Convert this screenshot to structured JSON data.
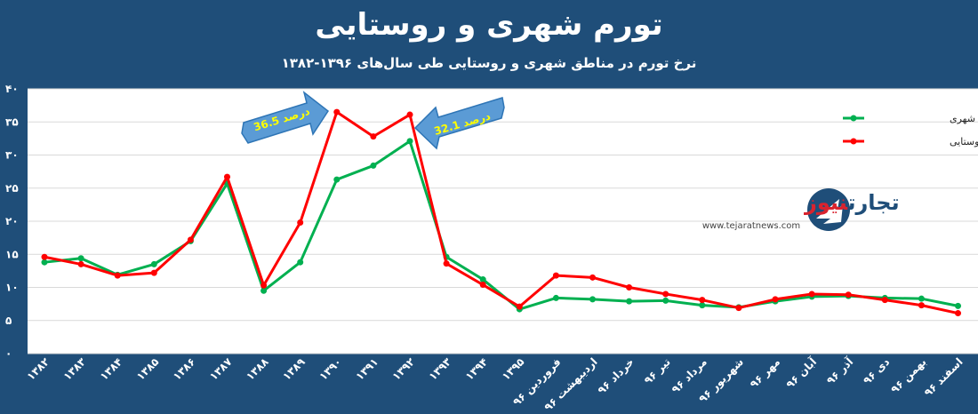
{
  "chart_data": {
    "type": "line",
    "title": "تورم شهری و روستایی",
    "subtitle": "نرخ تورم در مناطق شهری و روستایی طی سال‌های ۱۳۹۶-۱۳۸۲",
    "categories": [
      "۱۳۸۲",
      "۱۳۸۳",
      "۱۳۸۴",
      "۱۳۸۵",
      "۱۳۸۶",
      "۱۳۸۷",
      "۱۳۸۸",
      "۱۳۸۹",
      "۱۳۹۰",
      "۱۳۹۱",
      "۱۳۹۲",
      "۱۳۹۳",
      "۱۳۹۴",
      "۱۳۹۵",
      "فروردین ۹۶",
      "اردیبهشت ۹۶",
      "خرداد ۹۶",
      "تیر ۹۶",
      "مرداد ۹۶",
      "شهریور ۹۶",
      "مهر ۹۶",
      "آبان ۹۶",
      "آذر ۹۶",
      "دی ۹۶",
      "بهمن ۹۶",
      "اسفند ۹۶"
    ],
    "series": [
      {
        "name": "تورم مناطق شهری",
        "color": "#00b050",
        "values": [
          13.8,
          14.4,
          11.9,
          13.5,
          17.0,
          25.7,
          9.5,
          13.8,
          26.3,
          28.4,
          32.1,
          14.6,
          11.2,
          6.7,
          8.4,
          8.2,
          7.9,
          8.0,
          7.3,
          7.0,
          7.9,
          8.6,
          8.7,
          8.4,
          8.3,
          7.2
        ]
      },
      {
        "name": "تورم مناطق روستایی",
        "color": "#ff0000",
        "values": [
          14.6,
          13.5,
          11.8,
          12.2,
          17.2,
          26.7,
          10.3,
          19.8,
          36.5,
          32.8,
          36.1,
          13.6,
          10.4,
          7.1,
          11.8,
          11.5,
          10.0,
          9.0,
          8.1,
          6.9,
          8.2,
          9.0,
          8.9,
          8.1,
          7.3,
          6.1
        ]
      }
    ],
    "yticks": [
      "۰",
      "۵",
      "۱۰",
      "۱۵",
      "۲۰",
      "۲۵",
      "۳۰",
      "۳۵",
      "۴۰"
    ],
    "ylim": [
      0,
      40
    ],
    "grid": true,
    "legend": "right",
    "annotations": [
      {
        "text": "36.5 درصد",
        "target": "۱۳۹۰"
      },
      {
        "text": "32.1 درصد",
        "target": "۱۳۹۲"
      }
    ],
    "colors": {
      "background": "#1f4e79",
      "plot": "#ffffff",
      "arrow": "#5b9bd5",
      "callout_text": "#ffff00"
    }
  },
  "logo": {
    "brand_a": "تجارت",
    "brand_b": "نیوز",
    "url": "www.tejaratnews.com"
  }
}
